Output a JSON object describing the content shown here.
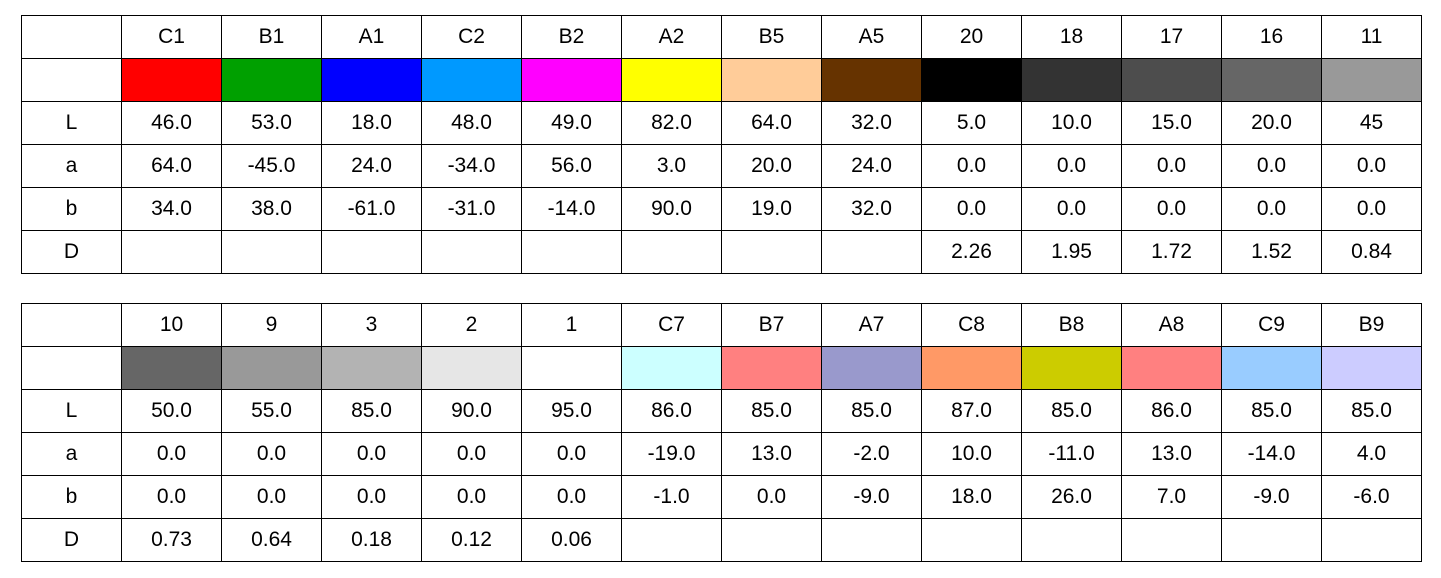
{
  "tables": [
    {
      "columns": [
        "C1",
        "B1",
        "A1",
        "C2",
        "B2",
        "A2",
        "B5",
        "A5",
        "20",
        "18",
        "17",
        "16",
        "11"
      ],
      "swatches": [
        "#ff0000",
        "#00a000",
        "#0000ff",
        "#0099ff",
        "#ff00ff",
        "#ffff00",
        "#ffcc99",
        "#663300",
        "#000000",
        "#333333",
        "#4d4d4d",
        "#666666",
        "#999999"
      ],
      "rows": [
        {
          "label": "L",
          "values": [
            "46.0",
            "53.0",
            "18.0",
            "48.0",
            "49.0",
            "82.0",
            "64.0",
            "32.0",
            "5.0",
            "10.0",
            "15.0",
            "20.0",
            "45"
          ]
        },
        {
          "label": "a",
          "values": [
            "64.0",
            "-45.0",
            "24.0",
            "-34.0",
            "56.0",
            "3.0",
            "20.0",
            "24.0",
            "0.0",
            "0.0",
            "0.0",
            "0.0",
            "0.0"
          ]
        },
        {
          "label": "b",
          "values": [
            "34.0",
            "38.0",
            "-61.0",
            "-31.0",
            "-14.0",
            "90.0",
            "19.0",
            "32.0",
            "0.0",
            "0.0",
            "0.0",
            "0.0",
            "0.0"
          ]
        },
        {
          "label": "D",
          "values": [
            "",
            "",
            "",
            "",
            "",
            "",
            "",
            "",
            "2.26",
            "1.95",
            "1.72",
            "1.52",
            "0.84"
          ]
        }
      ]
    },
    {
      "columns": [
        "10",
        "9",
        "3",
        "2",
        "1",
        "C7",
        "B7",
        "A7",
        "C8",
        "B8",
        "A8",
        "C9",
        "B9"
      ],
      "swatches": [
        "#666666",
        "#999999",
        "#b3b3b3",
        "#e6e6e6",
        "#ffffff",
        "#ccffff",
        "#ff8080",
        "#9999cc",
        "#ff9966",
        "#cccc00",
        "#ff8080",
        "#99ccff",
        "#ccccff"
      ],
      "rows": [
        {
          "label": "L",
          "values": [
            "50.0",
            "55.0",
            "85.0",
            "90.0",
            "95.0",
            "86.0",
            "85.0",
            "85.0",
            "87.0",
            "85.0",
            "86.0",
            "85.0",
            "85.0"
          ]
        },
        {
          "label": "a",
          "values": [
            "0.0",
            "0.0",
            "0.0",
            "0.0",
            "0.0",
            "-19.0",
            "13.0",
            "-2.0",
            "10.0",
            "-11.0",
            "13.0",
            "-14.0",
            "4.0"
          ]
        },
        {
          "label": "b",
          "values": [
            "0.0",
            "0.0",
            "0.0",
            "0.0",
            "0.0",
            "-1.0",
            "0.0",
            "-9.0",
            "18.0",
            "26.0",
            "7.0",
            "-9.0",
            "-6.0"
          ]
        },
        {
          "label": "D",
          "values": [
            "0.73",
            "0.64",
            "0.18",
            "0.12",
            "0.06",
            "",
            "",
            "",
            "",
            "",
            "",
            "",
            ""
          ]
        }
      ]
    }
  ]
}
